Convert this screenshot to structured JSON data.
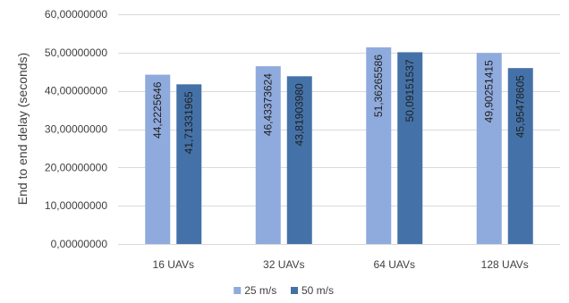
{
  "chart_data": {
    "type": "bar",
    "title": "",
    "xlabel": "",
    "ylabel": "End to end delay (seconds)",
    "categories": [
      "16 UAVs",
      "32 UAVs",
      "64 UAVs",
      "128 UAVs"
    ],
    "series": [
      {
        "name": "25 m/s",
        "color": "#8FAADC",
        "values": [
          44.2225646,
          46.43373624,
          51.36265586,
          49.90251415
        ],
        "labels": [
          "44,2225646",
          "46,43373624",
          "51,36265586",
          "49,90251415"
        ]
      },
      {
        "name": "50 m/s",
        "color": "#4472A8",
        "values": [
          41.71331965,
          43.8190398,
          50.09151537,
          45.95478605
        ],
        "labels": [
          "41,71331965",
          "43,81903980",
          "50,09151537",
          "45,95478605"
        ]
      }
    ],
    "ylim": [
      0,
      60
    ],
    "yticks": [
      0,
      10,
      20,
      30,
      40,
      50,
      60
    ],
    "ytick_labels": [
      "0,00000000",
      "10,00000000",
      "20,00000000",
      "30,00000000",
      "40,00000000",
      "50,00000000",
      "60,00000000"
    ],
    "grid": true,
    "legend_position": "bottom-center",
    "gridline_color": "#D9D9D9"
  }
}
